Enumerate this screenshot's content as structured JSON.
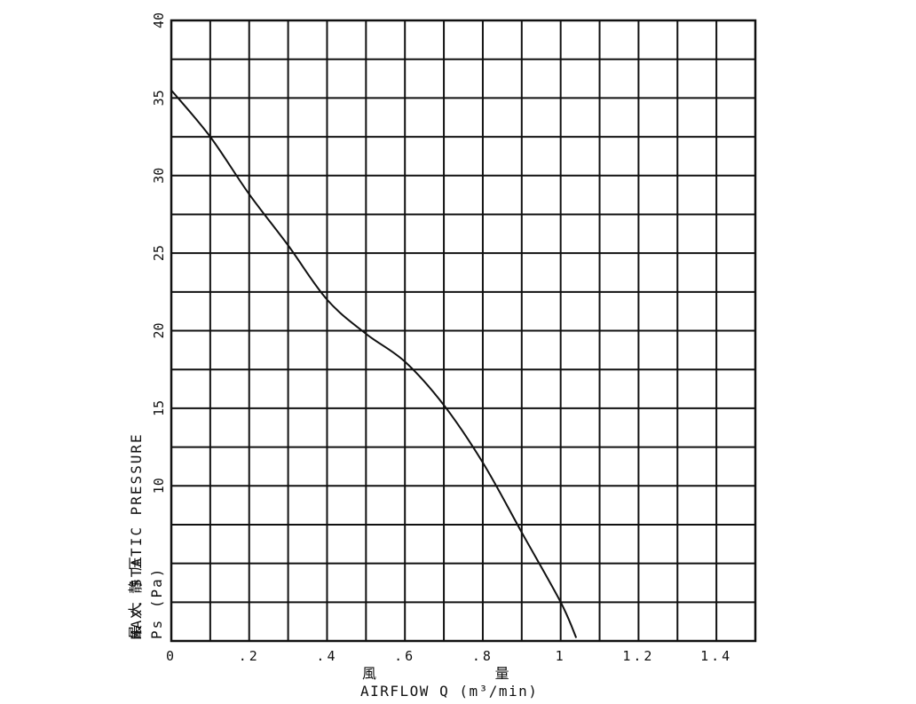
{
  "chart_data": {
    "type": "line",
    "xlabel_cjk": "風 量",
    "xlabel": "AIRFLOW Q (m³/min)",
    "ylabel_cjk": "最 大 静 圧",
    "ylabel": "MAX. STATIC PRESSURE",
    "ylabel_unit": "Ps (Pa)",
    "xlim": [
      0,
      1.5
    ],
    "ylim": [
      0,
      40
    ],
    "x_ticks": [
      {
        "value": 0,
        "label": "0"
      },
      {
        "value": 0.2,
        "label": ".2"
      },
      {
        "value": 0.4,
        "label": ".4"
      },
      {
        "value": 0.6,
        "label": ".6"
      },
      {
        "value": 0.8,
        "label": ".8"
      },
      {
        "value": 1.0,
        "label": "1"
      },
      {
        "value": 1.2,
        "label": "1.2"
      },
      {
        "value": 1.4,
        "label": "1.4"
      }
    ],
    "y_ticks": [
      {
        "value": 0,
        "label": ""
      },
      {
        "value": 5,
        "label": ""
      },
      {
        "value": 10,
        "label": "10"
      },
      {
        "value": 15,
        "label": "15"
      },
      {
        "value": 20,
        "label": "20"
      },
      {
        "value": 25,
        "label": "25"
      },
      {
        "value": 30,
        "label": "30"
      },
      {
        "value": 35,
        "label": "35"
      },
      {
        "value": 40,
        "label": "40"
      }
    ],
    "grid": true,
    "grid_x_step": 0.1,
    "grid_y_step": 2.5,
    "series": [
      {
        "x": [
          0,
          0.1,
          0.2,
          0.3,
          0.4,
          0.5,
          0.6,
          0.7,
          0.8,
          0.9,
          1.0,
          1.04
        ],
        "y": [
          35.5,
          32.5,
          28.8,
          25.5,
          22.0,
          19.8,
          18.0,
          15.2,
          11.5,
          7.0,
          2.5,
          0.2
        ]
      }
    ],
    "colors": {
      "line": "#111111",
      "grid": "#111111",
      "background": "#ffffff"
    }
  }
}
